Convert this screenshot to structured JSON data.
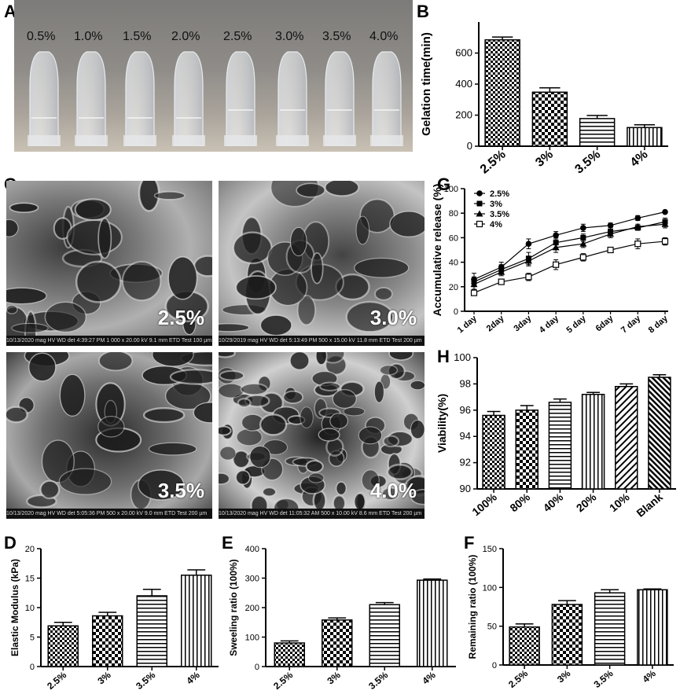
{
  "panels": {
    "A": {
      "letter": "A",
      "tube_labels": [
        "0.5%",
        "1.0%",
        "1.5%",
        "2.0%",
        "2.5%",
        "3.0%",
        "3.5%",
        "4.0%"
      ]
    },
    "B": {
      "letter": "B"
    },
    "C": {
      "letter": "C",
      "images": [
        {
          "label": "2.5%",
          "footer": "10/13/2020  mag  HV  WD  det   4:39:27 PM  1 000 x  20.00 kV  9.1 mm  ETD   Test   100 µm"
        },
        {
          "label": "3.0%",
          "footer": "10/29/2019  mag  HV  WD  det   5:13:49 PM  500 x  15.00 kV  11.8 mm  ETD   Test   200 µm"
        },
        {
          "label": "3.5%",
          "footer": "10/13/2020  mag  HV  WD  det   5:05:36 PM  500 x  20.00 kV  9.0 mm  ETD   Test   200 µm"
        },
        {
          "label": "4.0%",
          "footer": "10/13/2020  mag  HV  WD  det   11:05:32 AM  500 x  10.00 kV  8.6 mm  ETD   Test   200 µm"
        }
      ]
    },
    "D": {
      "letter": "D"
    },
    "E": {
      "letter": "E"
    },
    "F": {
      "letter": "F"
    },
    "G": {
      "letter": "G"
    },
    "H": {
      "letter": "H"
    }
  },
  "chart_data": [
    {
      "id": "B",
      "type": "bar",
      "categories": [
        "2.5%",
        "3%",
        "3.5%",
        "4%"
      ],
      "values": [
        685,
        348,
        178,
        120
      ],
      "errors": [
        18,
        28,
        20,
        18
      ],
      "ylabel": "Gelation time(min)",
      "xlabel": "",
      "ylim": [
        0,
        800
      ],
      "yticks": [
        0,
        200,
        400,
        600
      ],
      "patterns": [
        "check",
        "check2",
        "hlines",
        "vlines"
      ]
    },
    {
      "id": "G",
      "type": "line",
      "categories": [
        "1 day",
        "2day",
        "3day",
        "4 day",
        "5 day",
        "6day",
        "7 day",
        "8 day"
      ],
      "ylabel": "Accumulative release (%)",
      "xlabel": "",
      "ylim": [
        0,
        100
      ],
      "yticks": [
        0,
        20,
        40,
        60,
        80,
        100
      ],
      "legend": "top-left",
      "series": [
        {
          "name": "2.5%",
          "marker": "circle",
          "values": [
            26,
            36,
            55,
            62,
            68,
            70,
            76,
            81
          ],
          "errors": [
            5,
            4,
            4,
            3,
            3,
            2,
            2,
            1
          ]
        },
        {
          "name": "3%",
          "marker": "square",
          "values": [
            24,
            34,
            43,
            56,
            60,
            65,
            68,
            73
          ],
          "errors": [
            4,
            4,
            5,
            4,
            3,
            3,
            2,
            3
          ]
        },
        {
          "name": "3.5%",
          "marker": "triangle",
          "values": [
            22,
            32,
            41,
            52,
            55,
            63,
            69,
            71
          ],
          "errors": [
            4,
            3,
            4,
            4,
            3,
            3,
            2,
            3
          ]
        },
        {
          "name": "4%",
          "marker": "open-square",
          "values": [
            15,
            24,
            28,
            38,
            44,
            50,
            55,
            57
          ],
          "errors": [
            2,
            2,
            3,
            4,
            3,
            2,
            4,
            3
          ]
        }
      ]
    },
    {
      "id": "H",
      "type": "bar",
      "categories": [
        "100%",
        "80%",
        "40%",
        "20%",
        "10%",
        "Blank"
      ],
      "values": [
        95.6,
        96.0,
        96.6,
        97.2,
        97.8,
        98.5
      ],
      "errors": [
        0.3,
        0.35,
        0.25,
        0.15,
        0.2,
        0.2
      ],
      "ylabel": "Viability(%)",
      "xlabel": "",
      "ylim": [
        90,
        100
      ],
      "yticks": [
        90,
        92,
        94,
        96,
        98,
        100
      ],
      "patterns": [
        "check",
        "check2",
        "hlines",
        "vlines",
        "diag",
        "diag2"
      ]
    },
    {
      "id": "D",
      "type": "bar",
      "categories": [
        "2.5%",
        "3%",
        "3.5%",
        "4%"
      ],
      "values": [
        6.9,
        8.6,
        12.0,
        15.5
      ],
      "errors": [
        0.6,
        0.6,
        1.1,
        0.9
      ],
      "ylabel": "Elastic Modulus (kPa)",
      "xlabel": "",
      "ylim": [
        0,
        20
      ],
      "yticks": [
        0,
        5,
        10,
        15,
        20
      ],
      "patterns": [
        "check",
        "check2",
        "hlines",
        "vlines"
      ]
    },
    {
      "id": "E",
      "type": "bar",
      "categories": [
        "2.5%",
        "3%",
        "3.5%",
        "4%"
      ],
      "values": [
        80,
        158,
        210,
        293
      ],
      "errors": [
        7,
        7,
        7,
        4
      ],
      "ylabel": "Sweeling ratio (100%)",
      "xlabel": "",
      "ylim": [
        0,
        400
      ],
      "yticks": [
        0,
        100,
        200,
        300,
        400
      ],
      "patterns": [
        "check",
        "check2",
        "hlines",
        "vlines"
      ]
    },
    {
      "id": "F",
      "type": "bar",
      "categories": [
        "2.5%",
        "3%",
        "3.5%",
        "4%"
      ],
      "values": [
        49,
        78,
        93,
        97
      ],
      "errors": [
        4,
        5,
        4,
        1
      ],
      "ylabel": "Remaining ratio (100%)",
      "xlabel": "",
      "ylim": [
        0,
        150
      ],
      "yticks": [
        0,
        50,
        100,
        150
      ],
      "patterns": [
        "check",
        "check2",
        "hlines",
        "vlines"
      ]
    }
  ]
}
